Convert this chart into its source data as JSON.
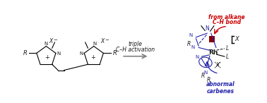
{
  "bg_color": "#ffffff",
  "arrow_color": "#808080",
  "text_color": "#1a1a1a",
  "red_color": "#cc0000",
  "blue_color": "#2222aa",
  "dark_red": "#8b0000",
  "arrow_label_line1": "triple",
  "arrow_label_line2": "C–H activation",
  "red_label_line1": "from alkane",
  "red_label_line2": "C–H bond",
  "blue_label": "abnormal\ncarbenes",
  "figsize": [
    3.78,
    1.46
  ],
  "dpi": 100
}
